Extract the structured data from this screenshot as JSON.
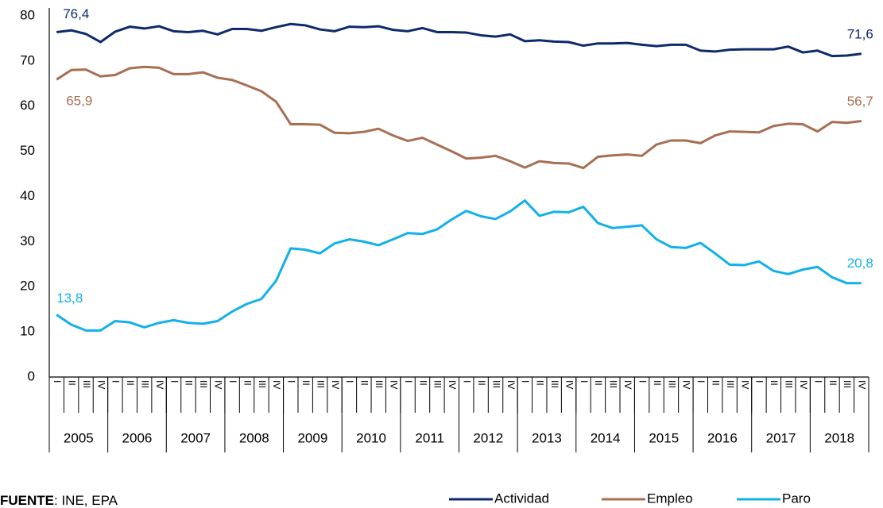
{
  "chart_data": {
    "type": "line",
    "categories": [
      "I",
      "II",
      "III",
      "IV",
      "I",
      "II",
      "III",
      "IV",
      "I",
      "II",
      "III",
      "IV",
      "I",
      "II",
      "III",
      "IV",
      "I",
      "II",
      "III",
      "IV",
      "I",
      "II",
      "III",
      "IV",
      "I",
      "II",
      "III",
      "IV",
      "I",
      "II",
      "III",
      "IV",
      "I",
      "II",
      "III",
      "IV",
      "I",
      "II",
      "III",
      "IV",
      "I",
      "II",
      "III",
      "IV",
      "I",
      "II",
      "III",
      "IV",
      "I",
      "II",
      "III",
      "IV",
      "I",
      "II",
      "III",
      "IV"
    ],
    "year_groups": [
      "2005",
      "2006",
      "2007",
      "2008",
      "2009",
      "2010",
      "2011",
      "2012",
      "2013",
      "2014",
      "2015",
      "2016",
      "2017",
      "2018"
    ],
    "series": [
      {
        "name": "Actividad",
        "color": "#0d2a6b",
        "values": [
          76.4,
          76.8,
          76.0,
          74.2,
          76.5,
          77.6,
          77.2,
          77.7,
          76.6,
          76.4,
          76.7,
          75.9,
          77.1,
          77.1,
          76.7,
          77.5,
          78.2,
          77.9,
          77.0,
          76.6,
          77.6,
          77.5,
          77.7,
          76.9,
          76.6,
          77.3,
          76.4,
          76.4,
          76.3,
          75.7,
          75.4,
          75.9,
          74.4,
          74.6,
          74.3,
          74.2,
          73.4,
          73.9,
          73.9,
          74.0,
          73.6,
          73.3,
          73.6,
          73.6,
          72.3,
          72.1,
          72.5,
          72.6,
          72.6,
          72.6,
          73.2,
          71.9,
          72.3,
          71.1,
          71.2,
          71.6
        ],
        "value_labels": [
          "76,4",
          null,
          null,
          null,
          null,
          null,
          null,
          null,
          null,
          null,
          null,
          null,
          null,
          null,
          null,
          null,
          null,
          null,
          null,
          null,
          null,
          null,
          null,
          null,
          null,
          null,
          null,
          null,
          null,
          null,
          null,
          null,
          null,
          null,
          null,
          null,
          null,
          null,
          null,
          null,
          null,
          null,
          null,
          null,
          null,
          null,
          null,
          null,
          null,
          null,
          null,
          null,
          null,
          null,
          null,
          "71,6"
        ]
      },
      {
        "name": "Empleo",
        "color": "#a86e52",
        "values": [
          65.9,
          68.0,
          68.1,
          66.6,
          66.9,
          68.4,
          68.7,
          68.5,
          67.1,
          67.1,
          67.5,
          66.3,
          65.8,
          64.6,
          63.3,
          61.0,
          56.0,
          56.0,
          55.9,
          54.1,
          54.0,
          54.3,
          55.0,
          53.5,
          52.3,
          53.0,
          51.5,
          50.0,
          48.4,
          48.6,
          49.0,
          47.8,
          46.4,
          47.8,
          47.4,
          47.3,
          46.3,
          48.8,
          49.1,
          49.3,
          49.0,
          51.5,
          52.4,
          52.4,
          51.8,
          53.5,
          54.4,
          54.3,
          54.2,
          55.6,
          56.1,
          56.0,
          54.4,
          56.5,
          56.3,
          56.7
        ],
        "value_labels": [
          "65,9",
          null,
          null,
          null,
          null,
          null,
          null,
          null,
          null,
          null,
          null,
          null,
          null,
          null,
          null,
          null,
          null,
          null,
          null,
          null,
          null,
          null,
          null,
          null,
          null,
          null,
          null,
          null,
          null,
          null,
          null,
          null,
          null,
          null,
          null,
          null,
          null,
          null,
          null,
          null,
          null,
          null,
          null,
          null,
          null,
          null,
          null,
          null,
          null,
          null,
          null,
          null,
          null,
          null,
          null,
          "56,7"
        ]
      },
      {
        "name": "Paro",
        "color": "#12b0ea",
        "values": [
          13.8,
          11.6,
          10.3,
          10.3,
          12.4,
          12.1,
          11.0,
          12.0,
          12.6,
          12.0,
          11.8,
          12.4,
          14.5,
          16.2,
          17.3,
          21.3,
          28.5,
          28.2,
          27.4,
          29.6,
          30.5,
          30.0,
          29.2,
          30.5,
          31.9,
          31.7,
          32.7,
          34.9,
          36.8,
          35.6,
          35.0,
          36.7,
          39.1,
          35.7,
          36.6,
          36.5,
          37.7,
          34.1,
          33.0,
          33.3,
          33.6,
          30.5,
          28.8,
          28.6,
          29.7,
          27.4,
          24.9,
          24.8,
          25.6,
          23.5,
          22.8,
          23.8,
          24.4,
          22.1,
          20.8,
          20.8
        ],
        "value_labels": [
          "13,8",
          null,
          null,
          null,
          null,
          null,
          null,
          null,
          null,
          null,
          null,
          null,
          null,
          null,
          null,
          null,
          null,
          null,
          null,
          null,
          null,
          null,
          null,
          null,
          null,
          null,
          null,
          null,
          null,
          null,
          null,
          null,
          null,
          null,
          null,
          null,
          null,
          null,
          null,
          null,
          null,
          null,
          null,
          null,
          null,
          null,
          null,
          null,
          null,
          null,
          null,
          null,
          null,
          null,
          null,
          "20,8"
        ]
      }
    ],
    "ylim": [
      0,
      80
    ],
    "yticks": [
      0,
      10,
      20,
      30,
      40,
      50,
      60,
      70,
      80
    ],
    "grid": false,
    "legend": "bottom",
    "source_label": "FUENTE",
    "source_text": ": INE, EPA"
  }
}
